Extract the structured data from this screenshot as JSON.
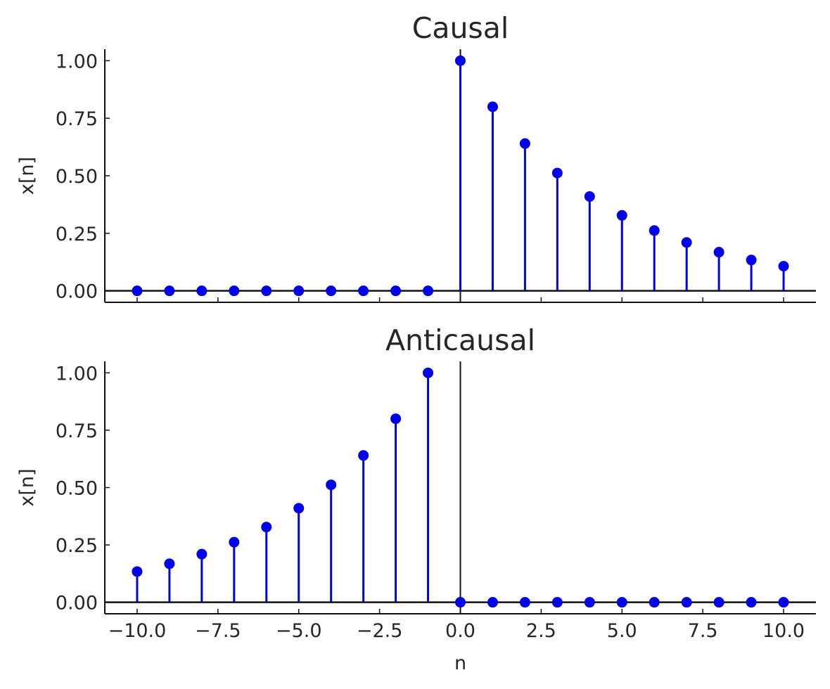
{
  "colors": {
    "stem": "#0000ee",
    "marker": "#0000ee",
    "axis": "#111111",
    "text": "#262626"
  },
  "chart_data": [
    {
      "type": "stem",
      "title": "Causal",
      "xlabel": "",
      "ylabel": "x[n]",
      "xlim": [
        -11,
        11
      ],
      "ylim": [
        -0.05,
        1.05
      ],
      "xticks": [
        -10,
        -7.5,
        -5,
        -2.5,
        0,
        2.5,
        5,
        7.5,
        10
      ],
      "xtick_labels": [],
      "yticks": [
        0,
        0.25,
        0.5,
        0.75,
        1.0
      ],
      "ytick_labels": [
        "0.00",
        "0.25",
        "0.50",
        "0.75",
        "1.00"
      ],
      "x": [
        -10,
        -9,
        -8,
        -7,
        -6,
        -5,
        -4,
        -3,
        -2,
        -1,
        0,
        1,
        2,
        3,
        4,
        5,
        6,
        7,
        8,
        9,
        10
      ],
      "values": [
        0,
        0,
        0,
        0,
        0,
        0,
        0,
        0,
        0,
        0,
        1.0,
        0.8,
        0.64,
        0.512,
        0.41,
        0.328,
        0.262,
        0.21,
        0.168,
        0.134,
        0.107
      ]
    },
    {
      "type": "stem",
      "title": "Anticausal",
      "xlabel": "n",
      "ylabel": "x[n]",
      "xlim": [
        -11,
        11
      ],
      "ylim": [
        -0.05,
        1.05
      ],
      "xticks": [
        -10,
        -7.5,
        -5,
        -2.5,
        0,
        2.5,
        5,
        7.5,
        10
      ],
      "xtick_labels": [
        "−10.0",
        "−7.5",
        "−5.0",
        "−2.5",
        "0.0",
        "2.5",
        "5.0",
        "7.5",
        "10.0"
      ],
      "yticks": [
        0,
        0.25,
        0.5,
        0.75,
        1.0
      ],
      "ytick_labels": [
        "0.00",
        "0.25",
        "0.50",
        "0.75",
        "1.00"
      ],
      "x": [
        -10,
        -9,
        -8,
        -7,
        -6,
        -5,
        -4,
        -3,
        -2,
        -1,
        0,
        1,
        2,
        3,
        4,
        5,
        6,
        7,
        8,
        9,
        10
      ],
      "values": [
        0.134,
        0.168,
        0.21,
        0.262,
        0.328,
        0.41,
        0.512,
        0.64,
        0.8,
        1.0,
        0,
        0,
        0,
        0,
        0,
        0,
        0,
        0,
        0,
        0,
        0
      ]
    }
  ]
}
